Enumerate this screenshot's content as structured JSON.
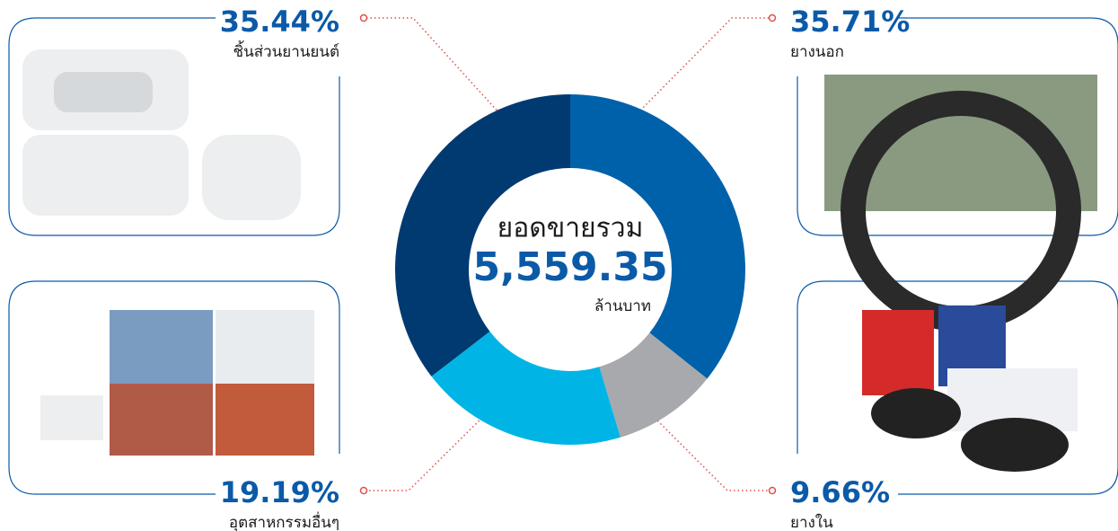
{
  "chart_data": {
    "type": "pie",
    "center_title": "ยอดขายรวม",
    "total": {
      "value": 5559.35,
      "label": "5,559.35"
    },
    "total_unit": "ล้านบาท",
    "categories": [
      "ยางนอก",
      "ยางใน",
      "อุตสาหกรรมอื่นๆ",
      "ชิ้นส่วนยานยนต์"
    ],
    "values": [
      35.71,
      9.66,
      19.19,
      35.44
    ],
    "value_labels": [
      "35.71%",
      "9.66%",
      "19.19%",
      "35.44%"
    ],
    "colors": [
      "#0061ab",
      "#a7a9ac",
      "#00b5e6",
      "#003a70"
    ]
  }
}
